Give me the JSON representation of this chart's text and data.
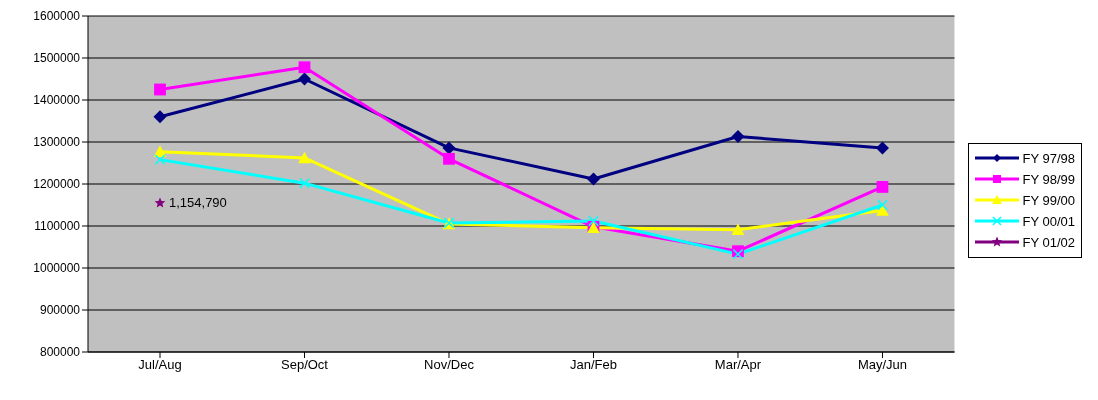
{
  "chart_data": {
    "type": "line",
    "categories": [
      "Jul/Aug",
      "Sep/Oct",
      "Nov/Dec",
      "Jan/Feb",
      "Mar/Apr",
      "May/Jun"
    ],
    "series": [
      {
        "name": "FY 97/98",
        "color": "#000080",
        "marker": "diamond",
        "values": [
          1360000,
          1450000,
          1286000,
          1212000,
          1313000,
          1286000
        ]
      },
      {
        "name": "FY 98/99",
        "color": "#ff00ff",
        "marker": "square",
        "values": [
          1425000,
          1478000,
          1260000,
          1098000,
          1040000,
          1193000
        ]
      },
      {
        "name": "FY 99/00",
        "color": "#ffff00",
        "marker": "triangle",
        "values": [
          1277000,
          1262000,
          1105000,
          1096000,
          1091000,
          1137000
        ]
      },
      {
        "name": "FY 00/01",
        "color": "#00ffff",
        "marker": "cross",
        "values": [
          1258000,
          1202000,
          1107000,
          1112000,
          1033000,
          1150000
        ]
      },
      {
        "name": "FY 01/02",
        "color": "#800080",
        "marker": "star",
        "values": [
          1154790,
          null,
          null,
          null,
          null,
          null
        ],
        "value_labels": [
          "1,154,790",
          null,
          null,
          null,
          null,
          null
        ]
      }
    ],
    "ylim": [
      800000,
      1600000
    ],
    "yticks": [
      800000,
      900000,
      1000000,
      1100000,
      1200000,
      1300000,
      1400000,
      1500000,
      1600000
    ],
    "grid": "y",
    "legend": "right"
  }
}
